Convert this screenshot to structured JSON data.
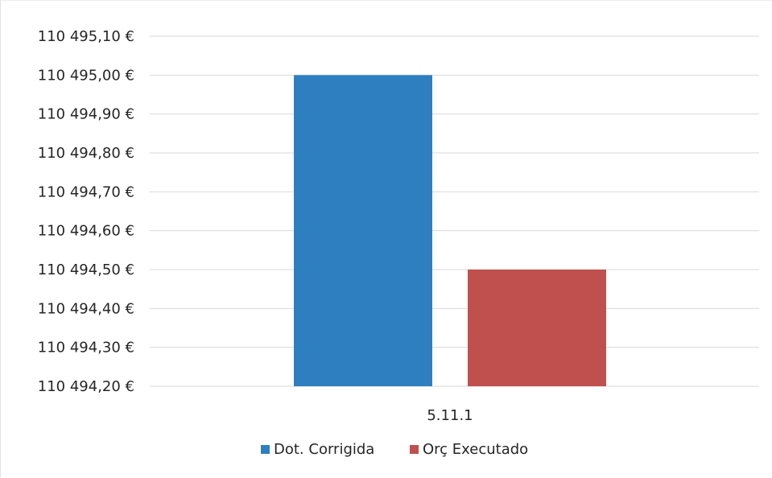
{
  "chart_data": {
    "type": "bar",
    "categories": [
      "5.11.1"
    ],
    "series": [
      {
        "name": "Dot. Corrigida",
        "values": [
          110495.0
        ],
        "color": "#2e7fc0"
      },
      {
        "name": "Orç Executado",
        "values": [
          110494.5
        ],
        "color": "#c0504d"
      }
    ],
    "title": "",
    "xlabel": "",
    "ylabel": "",
    "ylim": [
      110494.2,
      110495.1
    ],
    "yticks": [
      110494.2,
      110494.3,
      110494.4,
      110494.5,
      110494.6,
      110494.7,
      110494.8,
      110494.9,
      110495.0,
      110495.1
    ],
    "ytick_labels": [
      "110 494,20 €",
      "110 494,30 €",
      "110 494,40 €",
      "110 494,50 €",
      "110 494,60 €",
      "110 494,70 €",
      "110 494,80 €",
      "110 494,90 €",
      "110 495,00 €",
      "110 495,10 €"
    ],
    "grid": true,
    "legend": "bottom"
  }
}
